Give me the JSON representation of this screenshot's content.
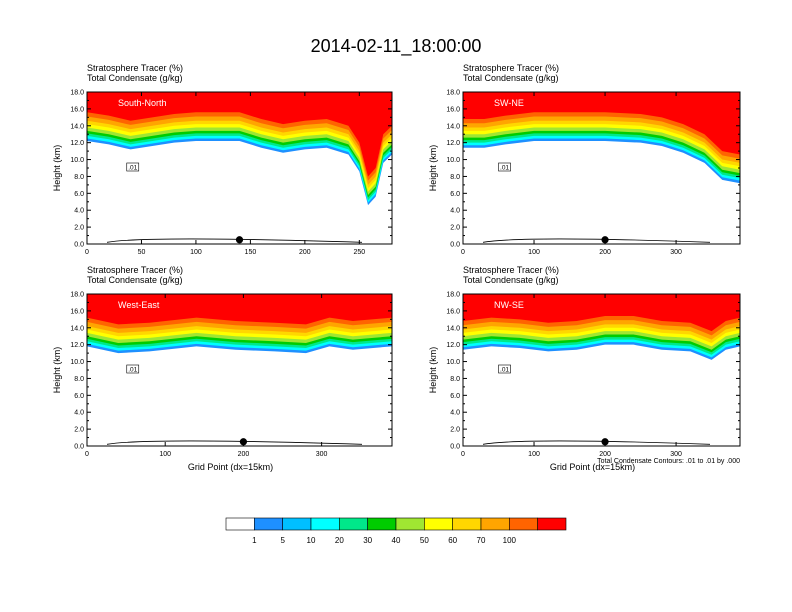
{
  "title": "2014-02-11_18:00:00",
  "chart_data": {
    "type": "heatmap",
    "field_label": "Stratosphere Tracer   (%)",
    "contour_label": "Total Condensate   (g/kg)",
    "ylabel": "Height (km)",
    "xlabel": "Grid Point (dx=15km)",
    "ylim": [
      0,
      18
    ],
    "yticks": [
      "0.0",
      "2.0",
      "4.0",
      "6.0",
      "8.0",
      "10.0",
      "12.0",
      "14.0",
      "16.0",
      "18.0"
    ],
    "contour_note": "Total Condensate Contours: .01 to .01 by .000",
    "contour_level_label": ".01",
    "colorbar": {
      "levels": [
        "1",
        "5",
        "10",
        "20",
        "30",
        "40",
        "50",
        "60",
        "70",
        "100"
      ],
      "colors": [
        "#ffffff",
        "#1e90ff",
        "#00bfff",
        "#00ffff",
        "#00e88a",
        "#00cc00",
        "#a0e632",
        "#ffff00",
        "#ffd700",
        "#ffa500",
        "#ff6400",
        "#ff0000"
      ]
    },
    "panels": [
      {
        "name": "South-North",
        "xlim": [
          0,
          280
        ],
        "xticks": [
          "0",
          "50",
          "100",
          "150",
          "200",
          "250"
        ],
        "tropopause": [
          [
            0,
            15.6
          ],
          [
            20,
            15.2
          ],
          [
            40,
            14.6
          ],
          [
            60,
            15.0
          ],
          [
            80,
            15.4
          ],
          [
            100,
            15.6
          ],
          [
            140,
            15.6
          ],
          [
            160,
            14.8
          ],
          [
            180,
            14.2
          ],
          [
            200,
            14.6
          ],
          [
            220,
            14.8
          ],
          [
            240,
            14.0
          ],
          [
            250,
            12.0
          ],
          [
            258,
            8.0
          ],
          [
            265,
            9.0
          ],
          [
            272,
            13.0
          ],
          [
            280,
            14.0
          ]
        ],
        "marker_x": 140,
        "show_xlabel": false
      },
      {
        "name": "SW-NE",
        "xlim": [
          0,
          390
        ],
        "xticks": [
          "0",
          "100",
          "200",
          "300"
        ],
        "tropopause": [
          [
            0,
            14.8
          ],
          [
            30,
            14.8
          ],
          [
            60,
            15.2
          ],
          [
            100,
            15.6
          ],
          [
            150,
            15.6
          ],
          [
            200,
            15.6
          ],
          [
            250,
            15.4
          ],
          [
            280,
            15.0
          ],
          [
            310,
            14.2
          ],
          [
            340,
            13.0
          ],
          [
            365,
            11.0
          ],
          [
            390,
            10.6
          ]
        ],
        "marker_x": 200,
        "show_xlabel": false
      },
      {
        "name": "West-East",
        "xlim": [
          0,
          390
        ],
        "xticks": [
          "0",
          "100",
          "200",
          "300"
        ],
        "tropopause": [
          [
            0,
            15.2
          ],
          [
            40,
            14.4
          ],
          [
            80,
            14.6
          ],
          [
            140,
            15.2
          ],
          [
            190,
            14.8
          ],
          [
            240,
            14.6
          ],
          [
            280,
            14.4
          ],
          [
            310,
            15.2
          ],
          [
            340,
            14.8
          ],
          [
            390,
            15.2
          ]
        ],
        "marker_x": 200,
        "show_xlabel": true
      },
      {
        "name": "NW-SE",
        "xlim": [
          0,
          390
        ],
        "xticks": [
          "0",
          "100",
          "200",
          "300"
        ],
        "tropopause": [
          [
            0,
            14.8
          ],
          [
            40,
            15.2
          ],
          [
            80,
            15.0
          ],
          [
            120,
            14.6
          ],
          [
            160,
            14.8
          ],
          [
            200,
            15.4
          ],
          [
            240,
            15.4
          ],
          [
            280,
            14.8
          ],
          [
            320,
            14.6
          ],
          [
            350,
            13.6
          ],
          [
            370,
            14.8
          ],
          [
            390,
            15.2
          ]
        ],
        "marker_x": 200,
        "show_xlabel": true
      }
    ]
  }
}
